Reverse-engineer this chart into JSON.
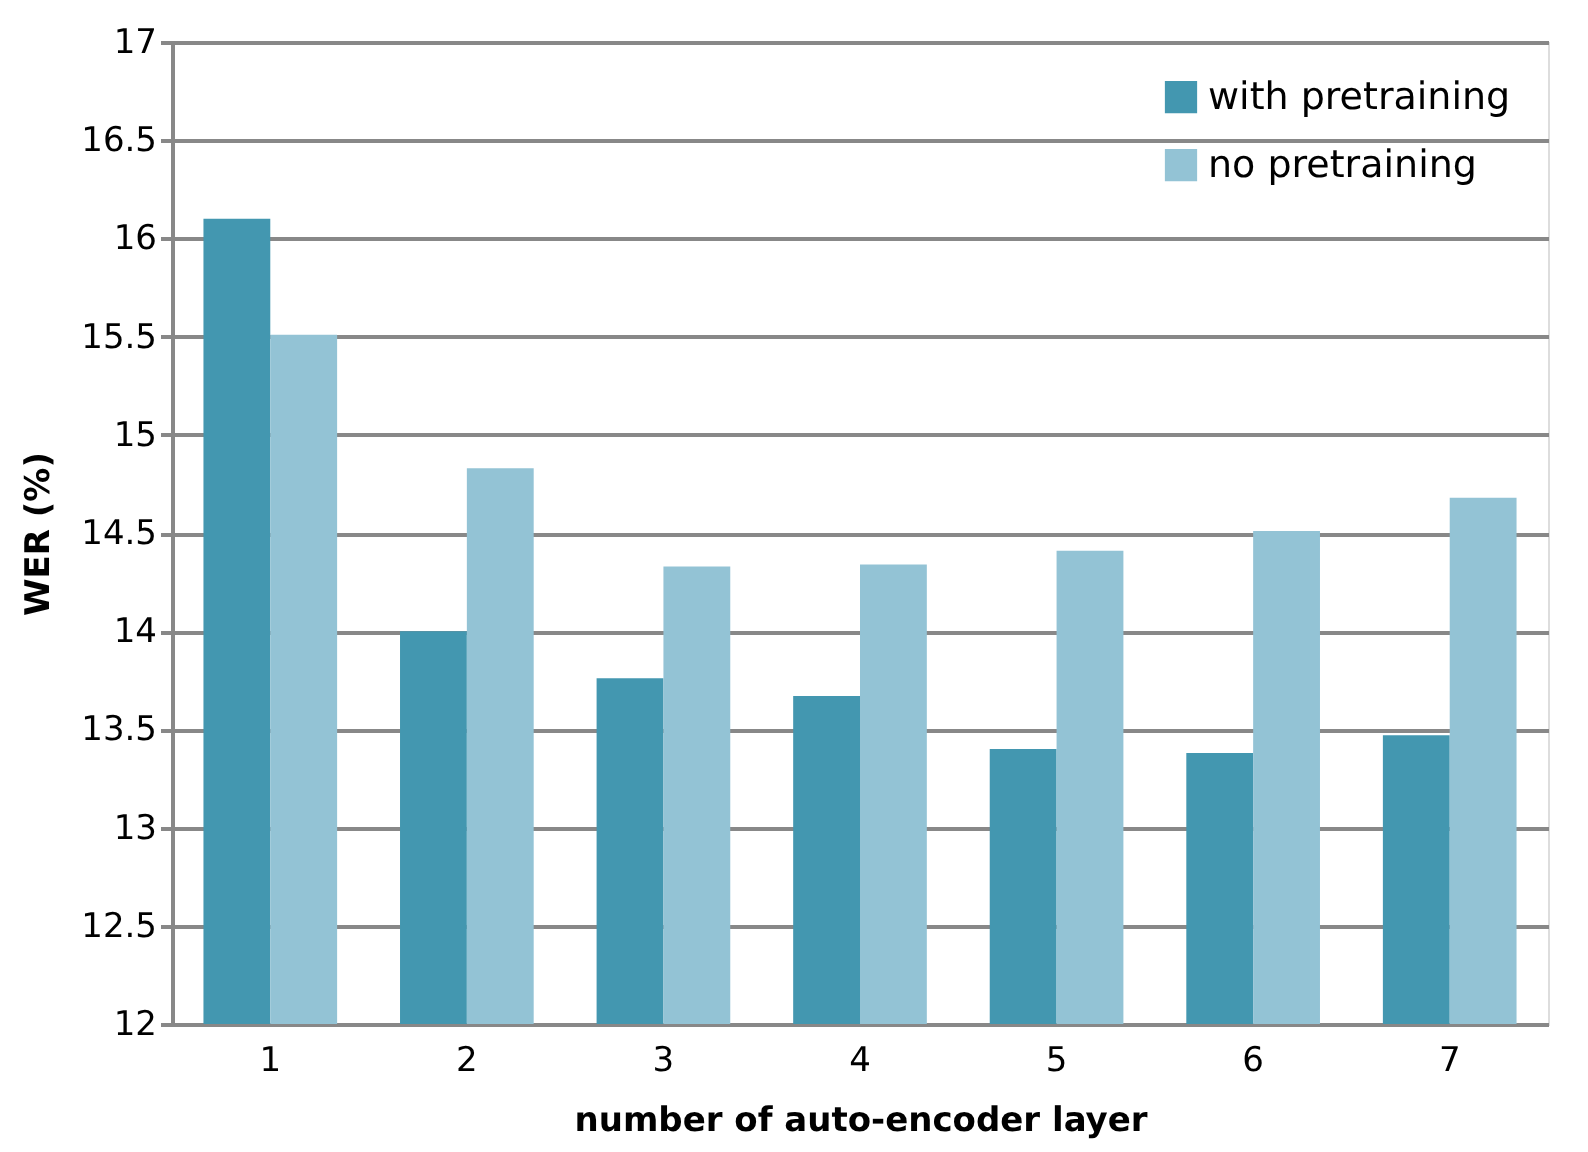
{
  "chart_data": {
    "type": "bar",
    "xlabel": "number of auto-encoder layer",
    "ylabel": "WER (%)",
    "categories": [
      "1",
      "2",
      "3",
      "4",
      "5",
      "6",
      "7"
    ],
    "series": [
      {
        "name": "with pretraining",
        "color": "#4397b0",
        "values": [
          16.1,
          14.0,
          13.76,
          13.67,
          13.4,
          13.38,
          13.47
        ]
      },
      {
        "name": "no pretraining",
        "color": "#93c3d5",
        "values": [
          15.51,
          14.83,
          14.33,
          14.34,
          14.41,
          14.51,
          14.68
        ]
      }
    ],
    "ylim": [
      12,
      17
    ],
    "yticks": [
      12,
      12.5,
      13,
      13.5,
      14,
      14.5,
      15,
      15.5,
      16,
      16.5,
      17
    ],
    "grid": "y",
    "legend": "top right"
  }
}
